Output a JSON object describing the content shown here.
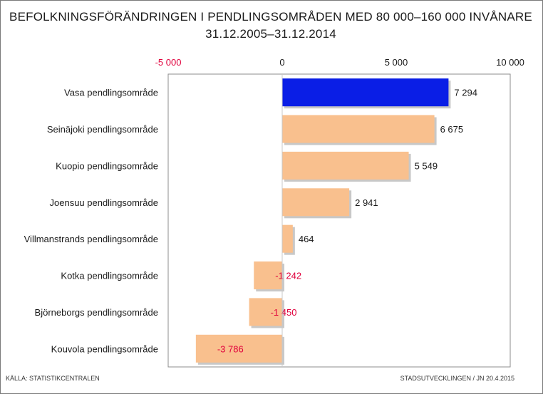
{
  "chart_data": {
    "type": "bar",
    "orientation": "horizontal",
    "title": "BEFOLKNINGSFÖRÄNDRINGEN I PENDLINGSOMRÅDEN MED 80 000–160 000 INVÅNARE",
    "subtitle": "31.12.2005–31.12.2014",
    "categories": [
      "Vasa pendlingsområde",
      "Seinäjoki pendlingsområde",
      "Kuopio pendlingsområde",
      "Joensuu pendlingsområde",
      "Villmanstrands pendlingsområde",
      "Kotka pendlingsområde",
      "Björneborgs pendlingsområde",
      "Kouvola pendlingsområde"
    ],
    "values": [
      7294,
      6675,
      5549,
      2941,
      464,
      -1242,
      -1450,
      -3786
    ],
    "value_labels": [
      "7 294",
      "6 675",
      "5 549",
      "2 941",
      "464",
      "-1 242",
      "-1 450",
      "-3 786"
    ],
    "xlim": [
      -5000,
      10000
    ],
    "ticks": [
      -5000,
      0,
      5000,
      10000
    ],
    "tick_labels": [
      "-5 000",
      "0",
      "5 000",
      "10 000"
    ],
    "axis_position": "top",
    "grid": false,
    "highlight_index": 0,
    "colors": {
      "highlight": "#0a1ee6",
      "default": "#f9c08e",
      "negative_text": "#e0003c",
      "positive_text": "#1a1a1a"
    }
  },
  "footer": {
    "source": "KÄLLA: STATISTIKCENTRALEN",
    "credit": "STADSUTVECKLINGEN / JN 20.4.2015"
  }
}
